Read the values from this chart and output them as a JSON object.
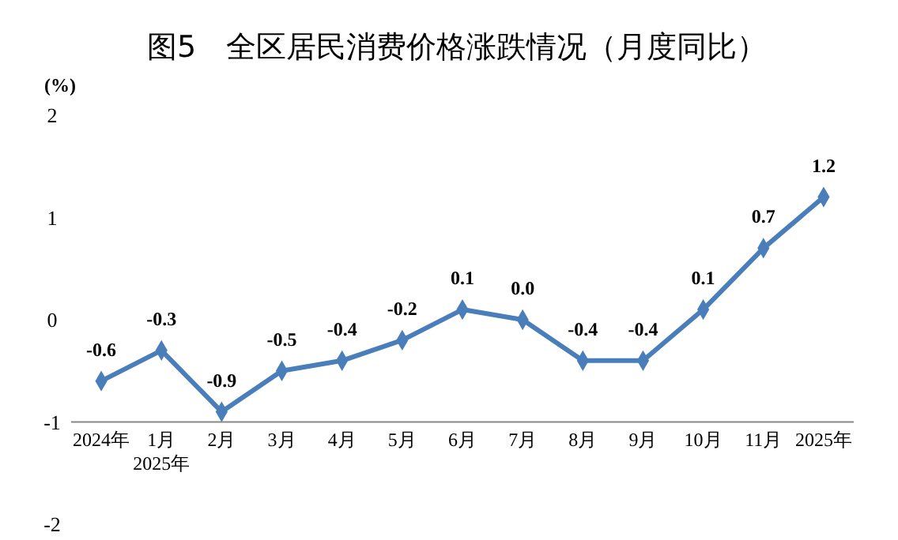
{
  "chart_data": {
    "type": "line",
    "title": "图5　全区居民消费价格涨跌情况（月度同比）",
    "ylabel": "(%)",
    "categories": [
      "2024年",
      "1月\n2025年",
      "2月",
      "3月",
      "4月",
      "5月",
      "6月",
      "7月",
      "8月",
      "9月",
      "10月",
      "11月",
      "2025年"
    ],
    "series": [
      {
        "color": "#4a7ebb",
        "values": [
          -0.6,
          -0.3,
          -0.9,
          -0.5,
          -0.4,
          -0.2,
          0.1,
          0.0,
          -0.4,
          -0.4,
          0.1,
          0.7,
          1.2
        ]
      }
    ],
    "value_labels": [
      "-0.6",
      "-0.3",
      "-0.9",
      "-0.5",
      "-0.4",
      "-0.2",
      "0.1",
      "0.0",
      "-0.4",
      "-0.4",
      "0.1",
      "0.7",
      "1.2"
    ],
    "ylim": [
      -2,
      2
    ],
    "yticks": [
      -2,
      -1,
      0,
      1,
      2
    ],
    "grid": false,
    "marker": "diamond",
    "line_style": "solid"
  }
}
